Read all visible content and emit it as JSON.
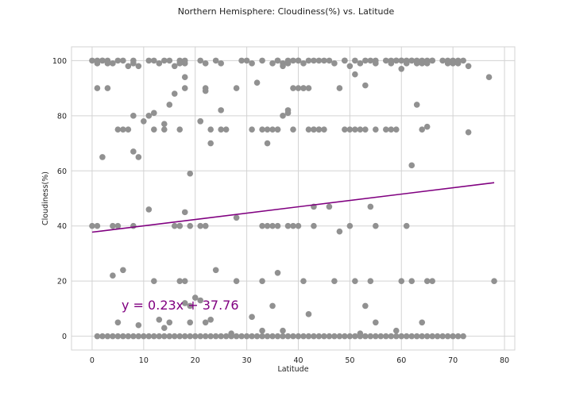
{
  "chart_data": {
    "type": "scatter",
    "title": "Northern Hemisphere: Cloudiness(%) vs. Latitude",
    "xlabel": "Latitude",
    "ylabel": "Cloudiness(%)",
    "xlim": [
      -4,
      82
    ],
    "ylim": [
      -5,
      105
    ],
    "xticks": [
      0,
      10,
      20,
      30,
      40,
      50,
      60,
      70,
      80
    ],
    "yticks": [
      0,
      20,
      40,
      60,
      80,
      100
    ],
    "grid": true,
    "colors": {
      "points": "#919191",
      "line": "#800080",
      "grid": "#d3d3d3",
      "spine": "#d3d3d3"
    },
    "regression": {
      "slope": 0.23,
      "intercept": 37.76,
      "x_range": [
        0,
        78
      ],
      "equation": "y = 0.23x + 37.76"
    },
    "series": [
      {
        "x": [
          0,
          1,
          1,
          2,
          2,
          3,
          3,
          4,
          5,
          6,
          7,
          8,
          8,
          9,
          11,
          12,
          13,
          14,
          15,
          16,
          17,
          17,
          18,
          18,
          21,
          22,
          24,
          25,
          29,
          30,
          31,
          33,
          35,
          36,
          36,
          37,
          37,
          38,
          38,
          39,
          40,
          40,
          41,
          42,
          43,
          44,
          45,
          46,
          47,
          49,
          49,
          50,
          51,
          52,
          53,
          54,
          55,
          55,
          57,
          58,
          58,
          59,
          59,
          60,
          60,
          61,
          61,
          62,
          62,
          63,
          63,
          64,
          64,
          65,
          65,
          66,
          66,
          68,
          69,
          69,
          70,
          70,
          71,
          71,
          72,
          73,
          77,
          1,
          3,
          5,
          7,
          8,
          9,
          10,
          11,
          12,
          14,
          16,
          17,
          18,
          22,
          23,
          25,
          28,
          31,
          32,
          34,
          35,
          36,
          38,
          39,
          40,
          41,
          42,
          43,
          44,
          45,
          48,
          49,
          50,
          51,
          52,
          53,
          55,
          57,
          59,
          60,
          2,
          6,
          8,
          12,
          14,
          15,
          18,
          21,
          22,
          23,
          25,
          26,
          33,
          34,
          36,
          37,
          38,
          39,
          41,
          42,
          43,
          44,
          51,
          53,
          58,
          63,
          64,
          65,
          0,
          1,
          4,
          5,
          8,
          11,
          16,
          17,
          18,
          19,
          21,
          22,
          28,
          33,
          34,
          35,
          36,
          38,
          39,
          40,
          43,
          48,
          50,
          54,
          55,
          61,
          4,
          6,
          12,
          17,
          18,
          24,
          28,
          33,
          36,
          41,
          47,
          51,
          54,
          60,
          62,
          65,
          66,
          78,
          1,
          2,
          3,
          4,
          5,
          6,
          7,
          8,
          9,
          10,
          11,
          12,
          13,
          14,
          15,
          16,
          17,
          18,
          19,
          20,
          21,
          22,
          23,
          24,
          25,
          26,
          27,
          28,
          29,
          30,
          31,
          32,
          33,
          34,
          35,
          36,
          37,
          38,
          39,
          40,
          41,
          42,
          43,
          44,
          45,
          46,
          47,
          48,
          49,
          50,
          51,
          52,
          53,
          54,
          55,
          56,
          57,
          58,
          59,
          60,
          61,
          62,
          63,
          64,
          65,
          66,
          67,
          68,
          69,
          70,
          71,
          72,
          5,
          9,
          13,
          14,
          15,
          18,
          19,
          19,
          20,
          21,
          22,
          23,
          27,
          31,
          33,
          35,
          37,
          42,
          52,
          53,
          55,
          59,
          64,
          22,
          21,
          19,
          43,
          62,
          73,
          46,
          17
        ],
        "y": [
          100,
          99,
          100,
          100,
          100,
          99,
          100,
          99,
          100,
          100,
          98,
          100,
          99,
          98,
          100,
          100,
          99,
          100,
          100,
          98,
          100,
          99,
          99,
          100,
          100,
          99,
          100,
          99,
          100,
          100,
          99,
          100,
          99,
          100,
          100,
          99,
          98,
          100,
          99,
          100,
          100,
          100,
          99,
          100,
          100,
          100,
          100,
          100,
          99,
          100,
          100,
          98,
          100,
          99,
          100,
          100,
          100,
          99,
          100,
          100,
          99,
          100,
          100,
          100,
          100,
          99,
          100,
          100,
          100,
          100,
          99,
          99,
          100,
          100,
          99,
          100,
          100,
          100,
          99,
          100,
          100,
          99,
          100,
          99,
          100,
          98,
          94,
          90,
          90,
          75,
          75,
          67,
          65,
          78,
          80,
          81,
          75,
          88,
          75,
          90,
          90,
          75,
          75,
          90,
          75,
          92,
          75,
          75,
          75,
          82,
          90,
          90,
          90,
          90,
          75,
          75,
          75,
          90,
          75,
          75,
          75,
          75,
          75,
          75,
          75,
          75,
          97,
          65,
          75,
          80,
          75,
          77,
          84,
          94,
          78,
          89,
          70,
          82,
          75,
          75,
          70,
          75,
          80,
          81,
          75,
          90,
          75,
          75,
          75,
          95,
          91,
          75,
          84,
          75,
          76,
          40,
          40,
          40,
          40,
          40,
          46,
          40,
          40,
          45,
          40,
          40,
          40,
          43,
          40,
          40,
          40,
          40,
          40,
          40,
          40,
          40,
          38,
          40,
          47,
          40,
          40,
          22,
          24,
          20,
          20,
          20,
          24,
          20,
          20,
          23,
          20,
          20,
          20,
          20,
          20,
          20,
          20,
          20,
          20,
          0,
          0,
          0,
          0,
          0,
          0,
          0,
          0,
          0,
          0,
          0,
          0,
          0,
          0,
          0,
          0,
          0,
          0,
          0,
          0,
          0,
          0,
          0,
          0,
          0,
          0,
          0,
          0,
          0,
          0,
          0,
          0,
          0,
          0,
          0,
          0,
          0,
          0,
          0,
          0,
          0,
          0,
          0,
          0,
          0,
          0,
          0,
          0,
          0,
          0,
          0,
          0,
          0,
          0,
          0,
          0,
          0,
          0,
          0,
          0,
          0,
          0,
          0,
          0,
          0,
          0,
          0,
          0,
          0,
          0,
          0,
          0,
          5,
          4,
          6,
          3,
          5,
          12,
          11,
          5,
          14,
          13,
          5,
          6,
          1,
          7,
          2,
          11,
          2,
          8,
          1,
          11,
          5,
          2,
          5,
          40,
          78,
          59,
          47,
          62,
          74,
          47,
          40
        ]
      }
    ]
  }
}
